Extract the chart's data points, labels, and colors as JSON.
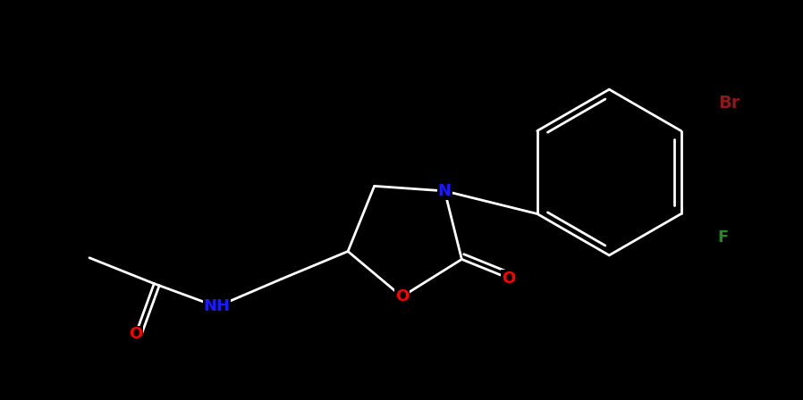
{
  "background_color": "#000000",
  "line_color": "#ffffff",
  "atom_colors": {
    "N": "#1a1aff",
    "O": "#ff0000",
    "Br": "#8B1A1A",
    "F": "#228B22",
    "C": "#ffffff"
  },
  "bond_lw": 2.0,
  "font_size": 13
}
